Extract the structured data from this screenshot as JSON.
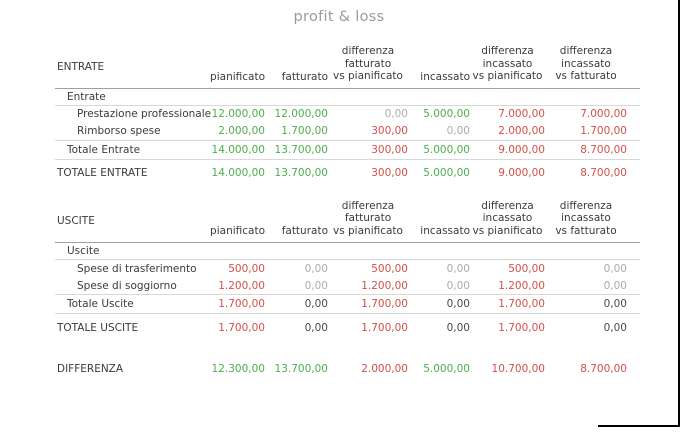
{
  "title": "profit & loss",
  "columns": [
    "pianificato",
    "fatturato",
    "differenza\nfatturato\nvs pianificato",
    "incassato",
    "differenza\nincassato\nvs pianificato",
    "differenza\nincassato\nvs fatturato"
  ],
  "colors": {
    "positive": "#4cae4c",
    "negative": "#d2504a",
    "zero_muted": "#ababab",
    "zero_dark": "#4a4a4a",
    "row_line": "#d8d8d8",
    "header_line": "#9f9f9f",
    "title_text": "#9b9b9b",
    "frame_edge": "#000000"
  },
  "sections": [
    {
      "name": "ENTRATE",
      "group_label": "Entrate",
      "rows": [
        {
          "label": "Prestazione professionale",
          "values": [
            {
              "text": "12.000,00",
              "tone": "num pos"
            },
            {
              "text": "12.000,00",
              "tone": "num pos"
            },
            {
              "text": "0,00",
              "tone": "num muted"
            },
            {
              "text": "5.000,00",
              "tone": "num pos"
            },
            {
              "text": "7.000,00",
              "tone": "num neg"
            },
            {
              "text": "7.000,00",
              "tone": "num neg"
            }
          ]
        },
        {
          "label": "Rimborso spese",
          "values": [
            {
              "text": "2.000,00",
              "tone": "num pos"
            },
            {
              "text": "1.700,00",
              "tone": "num pos"
            },
            {
              "text": "300,00",
              "tone": "num neg"
            },
            {
              "text": "0,00",
              "tone": "num muted"
            },
            {
              "text": "2.000,00",
              "tone": "num neg"
            },
            {
              "text": "1.700,00",
              "tone": "num neg"
            }
          ]
        }
      ],
      "subtotal": {
        "label": "Totale Entrate",
        "values": [
          {
            "text": "14.000,00",
            "tone": "num pos"
          },
          {
            "text": "13.700,00",
            "tone": "num pos"
          },
          {
            "text": "300,00",
            "tone": "num neg"
          },
          {
            "text": "5.000,00",
            "tone": "num pos"
          },
          {
            "text": "9.000,00",
            "tone": "num neg"
          },
          {
            "text": "8.700,00",
            "tone": "num neg"
          }
        ]
      },
      "total": {
        "label": "TOTALE ENTRATE",
        "values": [
          {
            "text": "14.000,00",
            "tone": "num pos"
          },
          {
            "text": "13.700,00",
            "tone": "num pos"
          },
          {
            "text": "300,00",
            "tone": "num neg"
          },
          {
            "text": "5.000,00",
            "tone": "num pos"
          },
          {
            "text": "9.000,00",
            "tone": "num neg"
          },
          {
            "text": "8.700,00",
            "tone": "num neg"
          }
        ]
      }
    },
    {
      "name": "USCITE",
      "group_label": "Uscite",
      "rows": [
        {
          "label": "Spese di trasferimento",
          "values": [
            {
              "text": "500,00",
              "tone": "num neg"
            },
            {
              "text": "0,00",
              "tone": "num muted"
            },
            {
              "text": "500,00",
              "tone": "num neg"
            },
            {
              "text": "0,00",
              "tone": "num muted"
            },
            {
              "text": "500,00",
              "tone": "num neg"
            },
            {
              "text": "0,00",
              "tone": "num muted"
            }
          ]
        },
        {
          "label": "Spese di soggiorno",
          "values": [
            {
              "text": "1.200,00",
              "tone": "num neg"
            },
            {
              "text": "0,00",
              "tone": "num muted"
            },
            {
              "text": "1.200,00",
              "tone": "num neg"
            },
            {
              "text": "0,00",
              "tone": "num muted"
            },
            {
              "text": "1.200,00",
              "tone": "num neg"
            },
            {
              "text": "0,00",
              "tone": "num muted"
            }
          ]
        }
      ],
      "subtotal": {
        "label": "Totale Uscite",
        "values": [
          {
            "text": "1.700,00",
            "tone": "num neg"
          },
          {
            "text": "0,00",
            "tone": "num dark"
          },
          {
            "text": "1.700,00",
            "tone": "num neg"
          },
          {
            "text": "0,00",
            "tone": "num dark"
          },
          {
            "text": "1.700,00",
            "tone": "num neg"
          },
          {
            "text": "0,00",
            "tone": "num dark"
          }
        ]
      },
      "total": {
        "label": "TOTALE USCITE",
        "values": [
          {
            "text": "1.700,00",
            "tone": "num neg"
          },
          {
            "text": "0,00",
            "tone": "num dark"
          },
          {
            "text": "1.700,00",
            "tone": "num neg"
          },
          {
            "text": "0,00",
            "tone": "num dark"
          },
          {
            "text": "1.700,00",
            "tone": "num neg"
          },
          {
            "text": "0,00",
            "tone": "num dark"
          }
        ]
      }
    }
  ],
  "difference": {
    "label": "DIFFERENZA",
    "values": [
      {
        "text": "12.300,00",
        "tone": "num pos"
      },
      {
        "text": "13.700,00",
        "tone": "num pos"
      },
      {
        "text": "2.000,00",
        "tone": "num neg"
      },
      {
        "text": "5.000,00",
        "tone": "num pos"
      },
      {
        "text": "10.700,00",
        "tone": "num neg"
      },
      {
        "text": "8.700,00",
        "tone": "num neg"
      }
    ]
  }
}
